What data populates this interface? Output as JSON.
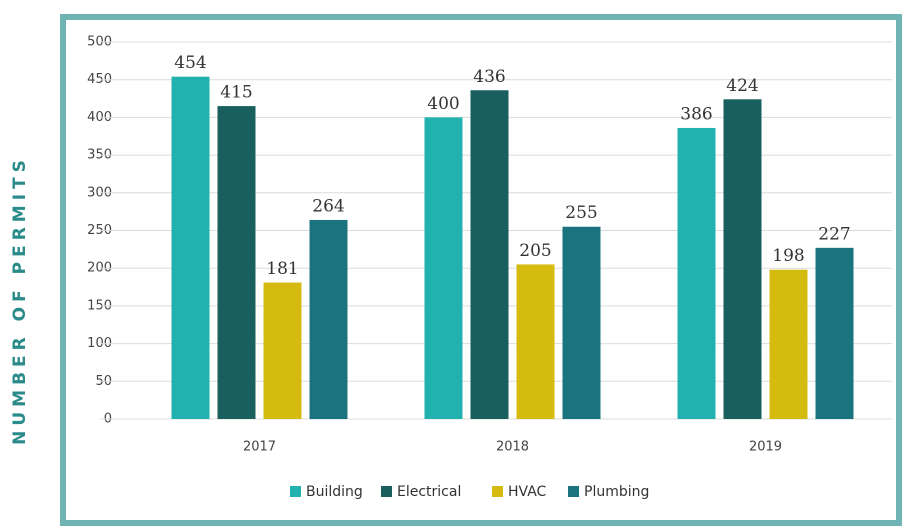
{
  "chart_data": {
    "type": "bar",
    "ylabel": "NUMBER OF PERMITS",
    "categories": [
      "2017",
      "2018",
      "2019"
    ],
    "series": [
      {
        "name": "Building",
        "color": "#21b1ae",
        "values": [
          454,
          400,
          386
        ]
      },
      {
        "name": "Electrical",
        "color": "#185f5d",
        "values": [
          415,
          436,
          424
        ]
      },
      {
        "name": "HVAC",
        "color": "#d5bb10",
        "values": [
          181,
          205,
          198
        ]
      },
      {
        "name": "Plumbing",
        "color": "#1c7380",
        "values": [
          264,
          255,
          227
        ]
      }
    ],
    "ylim": [
      0,
      500
    ],
    "yticks": [
      0,
      50,
      100,
      150,
      200,
      250,
      300,
      350,
      400,
      450,
      500
    ],
    "grid": true,
    "legend": "bottom"
  }
}
